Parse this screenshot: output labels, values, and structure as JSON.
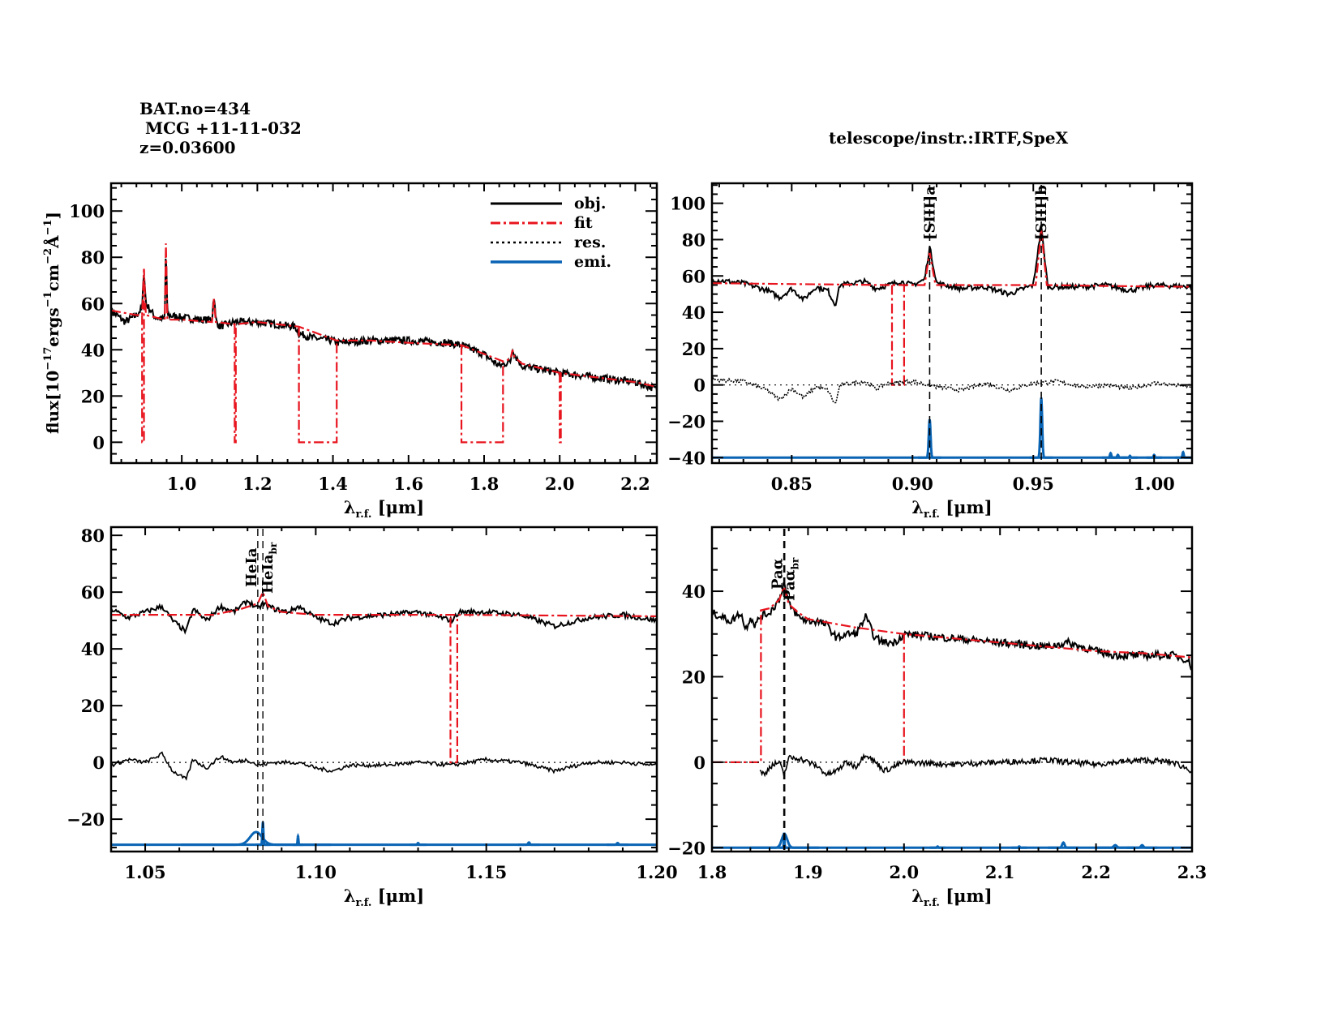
{
  "header": {
    "bat_no": "BAT.no=434",
    "object": " MCG +11-11-032",
    "redshift": "z=0.03600",
    "telescope": "telescope/instr.:IRTF,SpeX"
  },
  "colors": {
    "obj": "#000000",
    "fit": "#e8141e",
    "res": "#000000",
    "emi": "#0a64b4"
  },
  "legend": [
    "obj.",
    "fit",
    "res.",
    "emi."
  ],
  "chart_data": [
    {
      "type": "line",
      "id": "full",
      "title": "",
      "xlabel": "λr.f. [μm]",
      "ylabel": "flux[10^-17 erg s^-1 cm^-2 Å^-1]",
      "xlim": [
        0.813,
        2.257
      ],
      "ylim": [
        -9,
        112
      ],
      "xticks": [
        1.0,
        1.2,
        1.4,
        1.6,
        1.8,
        2.0,
        2.2
      ],
      "xticklabels": [
        "1.0",
        "1.2",
        "1.4",
        "1.6",
        "1.8",
        "2.0",
        "2.2"
      ],
      "yticks": [
        0,
        20,
        40,
        60,
        80,
        100
      ],
      "yticklabels": [
        "0",
        "20",
        "40",
        "60",
        "80",
        "100"
      ],
      "legend_position": "top-right",
      "series": [
        {
          "name": "obj.",
          "x": [
            0.813,
            0.85,
            0.88,
            0.895,
            0.9,
            0.905,
            0.93,
            0.955,
            0.958,
            0.962,
            1.0,
            1.05,
            1.08,
            1.085,
            1.09,
            1.1,
            1.14,
            1.2,
            1.3,
            1.31,
            1.35,
            1.4,
            1.41,
            1.5,
            1.6,
            1.7,
            1.74,
            1.8,
            1.84,
            1.87,
            1.875,
            1.88,
            1.9,
            2.0,
            2.1,
            2.2,
            2.257
          ],
          "y": [
            57,
            52,
            55,
            58,
            75,
            60,
            54,
            53,
            86,
            55,
            54,
            53,
            53,
            64,
            53,
            50,
            52,
            52,
            50,
            47,
            45,
            44,
            43,
            44,
            44,
            43,
            42,
            38,
            33,
            35,
            41,
            38,
            33,
            30,
            28,
            26,
            23
          ]
        },
        {
          "name": "fit",
          "x": [
            0.813,
            0.88,
            0.895,
            0.9,
            0.905,
            0.955,
            0.958,
            0.962,
            1.0,
            1.08,
            1.085,
            1.09,
            1.14,
            1.2,
            1.31,
            1.41,
            1.5,
            1.6,
            1.74,
            1.85,
            1.87,
            1.875,
            1.88,
            1.9,
            2.0,
            2.1,
            2.2,
            2.257
          ],
          "y": [
            57,
            55,
            55,
            75,
            55,
            53,
            86,
            53,
            53,
            52,
            62,
            52,
            51,
            52,
            50,
            44,
            44,
            43,
            42,
            35,
            36,
            40,
            37,
            34,
            30,
            28,
            26,
            24
          ]
        },
        {
          "name": "fit-gaps",
          "x": [
            0.895,
            0.9,
            1.14,
            1.143,
            1.31,
            1.41,
            1.74,
            1.85,
            2.0,
            2.003
          ],
          "y": [
            0,
            0,
            0,
            0,
            0,
            0,
            0,
            0,
            0,
            0
          ]
        }
      ]
    },
    {
      "type": "line",
      "id": "siii",
      "xlabel": "λr.f. [μm]",
      "xlim": [
        0.817,
        1.0157
      ],
      "ylim": [
        -43,
        111
      ],
      "xticks": [
        0.85,
        0.9,
        0.95,
        1.0
      ],
      "xticklabels": [
        "0.85",
        "0.90",
        "0.95",
        "1.00"
      ],
      "yticks": [
        -40,
        -20,
        0,
        20,
        40,
        60,
        80,
        100
      ],
      "yticklabels": [
        "−40",
        "−20",
        "0",
        "20",
        "40",
        "60",
        "80",
        "100"
      ],
      "lines": [
        {
          "label": "[SIII]a",
          "x": 0.9071
        },
        {
          "label": "[SIII]b",
          "x": 0.9533
        }
      ],
      "emi_offset": -40,
      "emi_peaks": [
        {
          "x": 0.9071,
          "h": 21,
          "w": 0.0012
        },
        {
          "x": 0.9533,
          "h": 33,
          "w": 0.0012
        },
        {
          "x": 0.982,
          "h": 2.5,
          "w": 0.0009
        },
        {
          "x": 0.985,
          "h": 1.5,
          "w": 0.0009
        },
        {
          "x": 0.99,
          "h": 1,
          "w": 0.0008
        },
        {
          "x": 1.0,
          "h": 1.5,
          "w": 0.0008
        },
        {
          "x": 1.012,
          "h": 3,
          "w": 0.0008
        }
      ],
      "series": [
        {
          "name": "obj.",
          "x": [
            0.817,
            0.83,
            0.84,
            0.845,
            0.85,
            0.855,
            0.86,
            0.865,
            0.868,
            0.87,
            0.875,
            0.88,
            0.885,
            0.89,
            0.895,
            0.9,
            0.905,
            0.9071,
            0.91,
            0.92,
            0.93,
            0.94,
            0.95,
            0.9533,
            0.956,
            0.97,
            0.98,
            0.99,
            1.0,
            1.0157
          ],
          "y": [
            58,
            56,
            52,
            48,
            53,
            47,
            54,
            52,
            44,
            55,
            56,
            57,
            53,
            55,
            57,
            55,
            58,
            76,
            56,
            53,
            54,
            50,
            55,
            87,
            54,
            54,
            55,
            52,
            55,
            54
          ]
        },
        {
          "name": "fit",
          "x": [
            0.817,
            0.89,
            0.905,
            0.9071,
            0.9095,
            0.951,
            0.9533,
            0.9556,
            0.98,
            1.0157
          ],
          "y": [
            56,
            55,
            55,
            73,
            55,
            55,
            85,
            55,
            54.5,
            54
          ]
        },
        {
          "name": "fit-gap",
          "x": [
            0.8915,
            0.8915,
            0.8965,
            0.8965
          ],
          "y": [
            55,
            0,
            0,
            55
          ]
        },
        {
          "name": "res.",
          "x": [
            0.817,
            0.83,
            0.84,
            0.845,
            0.85,
            0.855,
            0.86,
            0.865,
            0.868,
            0.87,
            0.875,
            0.88,
            0.885,
            0.89,
            0.9,
            0.91,
            0.92,
            0.93,
            0.94,
            0.95,
            0.96,
            0.97,
            0.98,
            0.99,
            1.0,
            1.0157
          ],
          "y": [
            3,
            2,
            -3,
            -8,
            -2,
            -7,
            -1,
            -3,
            -11,
            0,
            1,
            2,
            -2,
            1,
            2,
            -1,
            -3,
            1,
            -3,
            1,
            2,
            -1,
            0,
            -2,
            1,
            -1
          ]
        }
      ]
    },
    {
      "type": "line",
      "id": "hei",
      "xlabel": "λr.f. [μm]",
      "xlim": [
        1.04,
        1.2
      ],
      "ylim": [
        -31.4,
        82.9
      ],
      "xticks": [
        1.05,
        1.1,
        1.15,
        1.2
      ],
      "xticklabels": [
        "1.05",
        "1.10",
        "1.15",
        "1.20"
      ],
      "yticks": [
        -20,
        0,
        20,
        40,
        60,
        80
      ],
      "yticklabels": [
        "−20",
        "0",
        "20",
        "40",
        "60",
        "80"
      ],
      "lines": [
        {
          "label": "HeIa",
          "x": 1.083
        },
        {
          "label": "HeIa",
          "sub": "br",
          "x": 1.0845
        }
      ],
      "emi_offset": -29,
      "emi_peaks": [
        {
          "x": 1.0825,
          "h": 4.5,
          "w": 0.0055
        },
        {
          "x": 1.0845,
          "h": 8,
          "w": 0.0005
        },
        {
          "x": 1.0948,
          "h": 3,
          "w": 0.0004
        },
        {
          "x": 1.13,
          "h": 0.6,
          "w": 0.0006
        },
        {
          "x": 1.1625,
          "h": 0.8,
          "w": 0.0008
        },
        {
          "x": 1.1885,
          "h": 0.6,
          "w": 0.0008
        }
      ],
      "series": [
        {
          "name": "obj.",
          "x": [
            1.04,
            1.045,
            1.05,
            1.055,
            1.058,
            1.062,
            1.064,
            1.068,
            1.072,
            1.076,
            1.08,
            1.083,
            1.0845,
            1.088,
            1.092,
            1.095,
            1.1,
            1.105,
            1.11,
            1.12,
            1.13,
            1.14,
            1.142,
            1.15,
            1.16,
            1.17,
            1.18,
            1.19,
            1.2
          ],
          "y": [
            54,
            51,
            53,
            55,
            50,
            46,
            54,
            50,
            55,
            53,
            57,
            54,
            56,
            54,
            53,
            55,
            51,
            49,
            51,
            52,
            53,
            50,
            53,
            53,
            52,
            48,
            51,
            52,
            50
          ]
        },
        {
          "name": "fit",
          "x": [
            1.04,
            1.07,
            1.078,
            1.083,
            1.0845,
            1.086,
            1.09,
            1.1,
            1.14,
            1.2
          ],
          "y": [
            52,
            52,
            54,
            56,
            60,
            55,
            53,
            52,
            52,
            51.5
          ]
        },
        {
          "name": "fit-gap",
          "x": [
            1.1395,
            1.1395,
            1.1415,
            1.1415
          ],
          "y": [
            51,
            0,
            0,
            51
          ]
        },
        {
          "name": "res.",
          "x": [
            1.04,
            1.045,
            1.05,
            1.055,
            1.058,
            1.062,
            1.064,
            1.068,
            1.072,
            1.076,
            1.08,
            1.083,
            1.088,
            1.095,
            1.1,
            1.105,
            1.11,
            1.12,
            1.13,
            1.14,
            1.15,
            1.16,
            1.17,
            1.18,
            1.19,
            1.2
          ],
          "y": [
            -1,
            1,
            0,
            3,
            -3,
            -6,
            1,
            -2,
            2,
            0,
            1,
            -1,
            0,
            0,
            -2,
            -3,
            -1,
            -1,
            0,
            -1,
            1,
            0,
            -3,
            0,
            0,
            -1
          ]
        }
      ]
    },
    {
      "type": "line",
      "id": "paa",
      "xlabel": "λr.f. [μm]",
      "xlim": [
        1.8,
        2.3
      ],
      "ylim": [
        -20.9,
        55
      ],
      "xticks": [
        1.8,
        1.9,
        2.0,
        2.1,
        2.2,
        2.3
      ],
      "xticklabels": [
        "1.8",
        "1.9",
        "2.0",
        "2.1",
        "2.2",
        "2.3"
      ],
      "yticks": [
        -20,
        0,
        20,
        40
      ],
      "yticklabels": [
        "−20",
        "0",
        "20",
        "40"
      ],
      "lines": [
        {
          "label": "Paα",
          "x": 1.8748
        },
        {
          "label": "Paα",
          "sub": "br",
          "x": 1.8758
        }
      ],
      "emi_offset": -20,
      "emi_peaks": [
        {
          "x": 1.8755,
          "h": 3.2,
          "w": 0.009
        },
        {
          "x": 1.8752,
          "h": 3.5,
          "w": 0.0012
        },
        {
          "x": 2.035,
          "h": 0.3,
          "w": 0.002
        },
        {
          "x": 2.12,
          "h": 0.3,
          "w": 0.002
        },
        {
          "x": 2.166,
          "h": 1.2,
          "w": 0.004
        },
        {
          "x": 2.22,
          "h": 0.6,
          "w": 0.005
        },
        {
          "x": 2.248,
          "h": 0.6,
          "w": 0.004
        }
      ],
      "series": [
        {
          "name": "obj.",
          "x": [
            1.8,
            1.81,
            1.82,
            1.83,
            1.835,
            1.84,
            1.845,
            1.85,
            1.86,
            1.87,
            1.875,
            1.88,
            1.89,
            1.9,
            1.91,
            1.92,
            1.93,
            1.94,
            1.95,
            1.96,
            1.97,
            1.98,
            1.99,
            2.0,
            2.05,
            2.1,
            2.15,
            2.17,
            2.2,
            2.22,
            2.25,
            2.28,
            2.295,
            2.3
          ],
          "y": [
            35,
            34,
            33,
            35,
            31,
            34,
            32,
            34,
            35,
            38,
            42,
            37,
            34,
            33,
            33,
            32,
            29,
            30,
            30,
            34,
            29,
            28,
            28,
            30,
            29,
            28,
            27,
            28,
            26,
            25,
            25,
            25,
            24,
            22
          ]
        },
        {
          "name": "fit",
          "x": [
            1.85,
            1.86,
            1.87,
            1.875,
            1.88,
            1.89,
            1.9,
            1.95,
            2.0,
            2.05,
            2.1,
            2.15,
            2.2,
            2.25,
            2.3
          ],
          "y": [
            35.5,
            36,
            38,
            41,
            37,
            35,
            33.5,
            31.5,
            30,
            29,
            28,
            27,
            26,
            25.5,
            24.5
          ]
        },
        {
          "name": "fit-gap",
          "x": [
            1.8,
            1.851,
            1.851,
            1.851
          ],
          "y": [
            0,
            0,
            0,
            35.5
          ]
        },
        {
          "name": "fit-gap2",
          "x": [
            2.0,
            2.0,
            2.0
          ],
          "y": [
            30,
            0,
            0
          ]
        },
        {
          "name": "res.",
          "x": [
            1.85,
            1.855,
            1.86,
            1.87,
            1.875,
            1.88,
            1.89,
            1.9,
            1.91,
            1.92,
            1.93,
            1.94,
            1.95,
            1.96,
            1.97,
            1.98,
            1.99,
            2.0,
            2.05,
            2.1,
            2.15,
            2.17,
            2.2,
            2.22,
            2.25,
            2.28,
            2.3
          ],
          "y": [
            -2,
            -3,
            -1,
            0,
            -3,
            1,
            1,
            0,
            -1,
            -3,
            -2,
            0,
            -1,
            2,
            0,
            -2,
            -1,
            0,
            -0.5,
            0,
            0.5,
            0,
            -0.5,
            0,
            0.5,
            0,
            -2
          ]
        }
      ]
    }
  ]
}
